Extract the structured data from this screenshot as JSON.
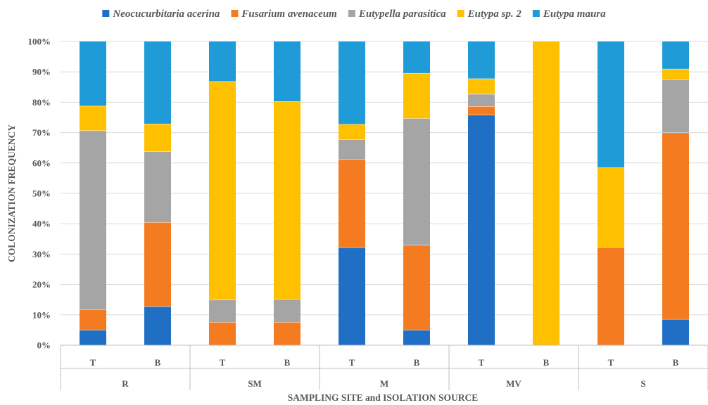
{
  "chart_data": {
    "type": "bar",
    "stacked": true,
    "percent": true,
    "title": "",
    "xlabel": "SAMPLING SITE and ISOLATION SOURCE",
    "ylabel": "COLONIZATION FREQUENCY",
    "ylim": [
      0,
      100
    ],
    "yticks": [
      "0%",
      "10%",
      "20%",
      "30%",
      "40%",
      "50%",
      "60%",
      "70%",
      "80%",
      "90%",
      "100%"
    ],
    "grid": true,
    "legend_position": "top",
    "groups": [
      "R",
      "SM",
      "M",
      "MV",
      "S"
    ],
    "categories": [
      "T",
      "B",
      "T",
      "B",
      "T",
      "B",
      "T",
      "B",
      "T",
      "B"
    ],
    "series": [
      {
        "name": "Neocucurbitaria acerina",
        "color": "#1f6fc5",
        "values": [
          5.0,
          12.8,
          0,
          0,
          32.2,
          5.0,
          75.8,
          0,
          0,
          8.6
        ]
      },
      {
        "name": "Fusarium avenaceum",
        "color": "#f47b20",
        "values": [
          6.8,
          27.7,
          7.6,
          7.6,
          29.0,
          28.0,
          2.9,
          0,
          32.2,
          61.4
        ]
      },
      {
        "name": "Eutypella parasitica",
        "color": "#a5a5a5",
        "values": [
          58.9,
          23.3,
          7.4,
          7.6,
          6.6,
          41.7,
          4.0,
          0,
          0,
          17.4
        ]
      },
      {
        "name": "Eutypa sp. 2",
        "color": "#ffc000",
        "values": [
          8.1,
          9.1,
          71.9,
          65.1,
          5.0,
          14.9,
          5.1,
          100,
          26.3,
          3.6
        ]
      },
      {
        "name": "Eutypa maura",
        "color": "#1f9bd7",
        "values": [
          21.2,
          27.1,
          13.1,
          19.7,
          27.2,
          10.4,
          12.2,
          0,
          41.5,
          9.0
        ]
      }
    ]
  }
}
